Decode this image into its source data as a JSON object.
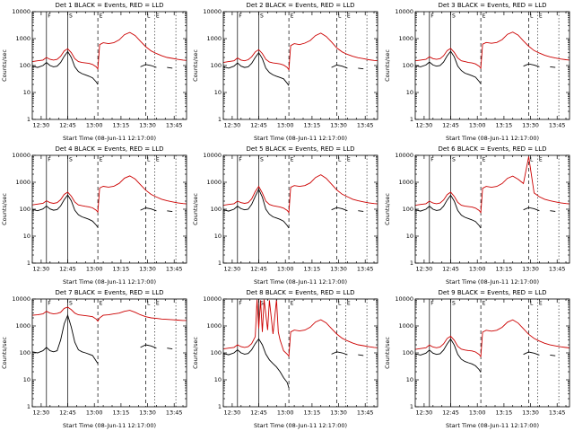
{
  "window": {
    "background": "#ffffff"
  },
  "colors": {
    "black": "#000000",
    "red": "#cc0000",
    "axis": "#000000",
    "flag": "#000000"
  },
  "legend": {
    "black_means": "Events",
    "red_means": "LLD"
  },
  "axes": {
    "xmin": 25,
    "xmax": 112,
    "ymin": 1,
    "ymax": 10000,
    "x_ticks": [
      30,
      45,
      60,
      75,
      90,
      105
    ],
    "x_tick_labels": [
      "12:30",
      "12:45",
      "13:00",
      "13:15",
      "13:30",
      "13:45"
    ],
    "x_minor_step": 5,
    "y_ticks": [
      1,
      10,
      100,
      1000,
      10000
    ],
    "y_tick_labels": [
      "1",
      "10",
      "100",
      "1000",
      "10000"
    ],
    "xlabel": "Start Time (08-Jun-11 12:17:00)",
    "ylabel": "Counts/sec",
    "y_scale": "log",
    "grid": false
  },
  "event_lines": {
    "solid": [
      33,
      45
    ],
    "dashed": [
      62,
      89
    ],
    "dotted": [
      94,
      106
    ]
  },
  "flags": [
    {
      "x": 33,
      "label": "F"
    },
    {
      "x": 45,
      "label": "S"
    },
    {
      "x": 62,
      "label": "E"
    },
    {
      "x": 89,
      "label": "L"
    },
    {
      "x": 94,
      "label": "E"
    }
  ],
  "sample_x": [
    25,
    28,
    31,
    33,
    35,
    37,
    39,
    41,
    43,
    45,
    47,
    49,
    51,
    53,
    55,
    57,
    59,
    61,
    62,
    63,
    65,
    68,
    71,
    74,
    77,
    80,
    83,
    86,
    89,
    92,
    95,
    98,
    101,
    104,
    107,
    110,
    112
  ],
  "chart_data": [
    {
      "det": 1,
      "type": "line",
      "title": "Det 1 BLACK = Events, RED = LLD",
      "ylim": [
        1,
        10000
      ],
      "series": [
        {
          "name": "LLD",
          "color": "red",
          "y": [
            140,
            150,
            160,
            200,
            170,
            160,
            170,
            220,
            350,
            420,
            300,
            180,
            140,
            130,
            125,
            120,
            110,
            90,
            75,
            600,
            700,
            650,
            700,
            900,
            1400,
            1700,
            1300,
            800,
            500,
            350,
            280,
            230,
            200,
            185,
            170,
            160,
            155
          ]
        },
        {
          "name": "Events",
          "color": "black",
          "y": [
            95,
            85,
            100,
            130,
            100,
            90,
            95,
            130,
            220,
            330,
            200,
            90,
            60,
            50,
            45,
            40,
            35,
            25,
            20,
            null,
            null,
            null,
            null,
            null,
            null,
            null,
            null,
            90,
            110,
            100,
            85,
            null,
            85,
            80,
            null,
            null,
            null
          ]
        }
      ]
    },
    {
      "det": 2,
      "type": "line",
      "title": "Det 2 BLACK = Events, RED = LLD",
      "ylim": [
        1,
        10000
      ],
      "series": [
        {
          "name": "LLD",
          "color": "red",
          "y": [
            130,
            140,
            150,
            190,
            160,
            150,
            165,
            210,
            320,
            390,
            280,
            170,
            135,
            125,
            120,
            115,
            105,
            85,
            70,
            550,
            650,
            600,
            680,
            850,
            1300,
            1600,
            1200,
            750,
            450,
            320,
            260,
            220,
            195,
            180,
            165,
            155,
            150
          ]
        },
        {
          "name": "Events",
          "color": "black",
          "y": [
            90,
            80,
            95,
            125,
            95,
            85,
            90,
            120,
            200,
            300,
            180,
            80,
            55,
            45,
            40,
            36,
            32,
            22,
            18,
            null,
            null,
            null,
            null,
            null,
            null,
            null,
            null,
            85,
            105,
            95,
            80,
            null,
            80,
            75,
            null,
            null,
            null
          ]
        }
      ]
    },
    {
      "det": 3,
      "type": "line",
      "title": "Det 3 BLACK = Events, RED = LLD",
      "ylim": [
        1,
        10000
      ],
      "series": [
        {
          "name": "LLD",
          "color": "red",
          "y": [
            150,
            160,
            170,
            210,
            180,
            170,
            180,
            230,
            360,
            430,
            310,
            190,
            150,
            140,
            130,
            125,
            115,
            95,
            80,
            620,
            720,
            670,
            720,
            920,
            1450,
            1750,
            1350,
            820,
            520,
            360,
            290,
            240,
            210,
            190,
            175,
            165,
            160
          ]
        },
        {
          "name": "Events",
          "color": "black",
          "y": [
            100,
            90,
            105,
            135,
            105,
            95,
            100,
            135,
            230,
            340,
            210,
            95,
            65,
            52,
            47,
            42,
            37,
            26,
            21,
            null,
            null,
            null,
            null,
            null,
            null,
            null,
            null,
            95,
            115,
            105,
            90,
            null,
            90,
            85,
            null,
            null,
            null
          ]
        }
      ]
    },
    {
      "det": 4,
      "type": "line",
      "title": "Det 4 BLACK = Events, RED = LLD",
      "ylim": [
        1,
        10000
      ],
      "series": [
        {
          "name": "LLD",
          "color": "red",
          "y": [
            145,
            155,
            165,
            205,
            175,
            165,
            175,
            225,
            355,
            430,
            305,
            185,
            145,
            135,
            128,
            122,
            112,
            92,
            78,
            610,
            710,
            660,
            710,
            910,
            1420,
            1720,
            1320,
            810,
            510,
            355,
            285,
            235,
            205,
            188,
            172,
            162,
            157
          ]
        },
        {
          "name": "Events",
          "color": "black",
          "y": [
            98,
            88,
            102,
            132,
            102,
            92,
            97,
            132,
            225,
            335,
            205,
            92,
            62,
            52,
            47,
            42,
            36,
            26,
            21,
            null,
            null,
            null,
            null,
            null,
            null,
            null,
            null,
            92,
            112,
            102,
            87,
            null,
            87,
            82,
            null,
            null,
            null
          ]
        }
      ]
    },
    {
      "det": 5,
      "type": "line",
      "title": "Det 5 BLACK = Events, RED = LLD",
      "ylim": [
        1,
        10000
      ],
      "series": [
        {
          "name": "LLD",
          "color": "red",
          "y": [
            140,
            150,
            160,
            200,
            175,
            165,
            175,
            240,
            450,
            700,
            400,
            200,
            150,
            135,
            128,
            120,
            110,
            90,
            75,
            650,
            750,
            700,
            750,
            950,
            1500,
            1900,
            1400,
            850,
            520,
            360,
            290,
            235,
            205,
            188,
            172,
            162,
            157
          ]
        },
        {
          "name": "Events",
          "color": "black",
          "y": [
            95,
            85,
            100,
            130,
            105,
            95,
            100,
            150,
            300,
            550,
            280,
            100,
            65,
            52,
            47,
            42,
            36,
            25,
            20,
            null,
            null,
            null,
            null,
            null,
            null,
            null,
            null,
            95,
            115,
            105,
            88,
            null,
            88,
            83,
            null,
            null,
            null
          ]
        }
      ]
    },
    {
      "det": 6,
      "type": "line",
      "title": "Det 6 BLACK = Events, RED = LLD",
      "ylim": [
        1,
        10000
      ],
      "series": [
        {
          "name": "LLD",
          "color": "red",
          "y": [
            140,
            150,
            160,
            200,
            170,
            160,
            170,
            220,
            350,
            430,
            300,
            180,
            140,
            130,
            125,
            120,
            110,
            90,
            75,
            600,
            700,
            650,
            700,
            900,
            1400,
            1700,
            1300,
            900,
            9000,
            400,
            290,
            235,
            205,
            188,
            172,
            162,
            157
          ]
        },
        {
          "name": "Events",
          "color": "black",
          "y": [
            95,
            85,
            100,
            130,
            100,
            90,
            95,
            130,
            220,
            330,
            200,
            90,
            60,
            50,
            45,
            40,
            35,
            25,
            20,
            null,
            null,
            null,
            null,
            null,
            null,
            null,
            null,
            95,
            115,
            105,
            88,
            null,
            88,
            83,
            null,
            null,
            null
          ]
        }
      ]
    },
    {
      "det": 7,
      "type": "line",
      "title": "Det 7 BLACK = Events, RED = LLD",
      "ylim": [
        1,
        10000
      ],
      "series": [
        {
          "name": "LLD",
          "color": "red",
          "y": [
            2500,
            2600,
            2800,
            3500,
            3000,
            2800,
            2900,
            3200,
            4500,
            5000,
            4000,
            3000,
            2600,
            2500,
            2400,
            2300,
            2200,
            1800,
            1500,
            2000,
            2500,
            2600,
            2800,
            3000,
            3500,
            3800,
            3200,
            2600,
            2200,
            2000,
            1900,
            1800,
            1750,
            1700,
            1650,
            1600,
            1600
          ]
        },
        {
          "name": "Events",
          "color": "black",
          "y": [
            110,
            100,
            120,
            160,
            120,
            110,
            120,
            300,
            1200,
            2500,
            900,
            250,
            130,
            110,
            100,
            90,
            80,
            50,
            40,
            null,
            null,
            null,
            null,
            null,
            null,
            null,
            null,
            160,
            200,
            180,
            150,
            null,
            150,
            140,
            null,
            null,
            null
          ]
        }
      ]
    },
    {
      "det": 8,
      "type": "line",
      "title": "Det 8 BLACK = Events, RED = LLD",
      "ylim": [
        1,
        10000
      ],
      "series": [
        {
          "name": "LLD",
          "color": "red",
          "x": [
            25,
            28,
            31,
            33,
            35,
            37,
            39,
            41,
            43,
            44,
            45,
            46,
            47,
            48,
            50,
            51,
            53,
            55,
            56,
            57,
            59,
            61,
            62,
            63,
            65,
            68,
            71,
            74,
            77,
            80,
            83,
            86,
            89,
            92,
            95,
            98,
            101,
            104,
            107,
            110,
            112
          ],
          "y": [
            140,
            150,
            160,
            200,
            170,
            160,
            170,
            220,
            400,
            9500,
            800,
            9000,
            600,
            9500,
            700,
            9000,
            500,
            9500,
            600,
            300,
            120,
            90,
            75,
            600,
            700,
            650,
            700,
            900,
            1400,
            1700,
            1300,
            800,
            500,
            350,
            280,
            230,
            200,
            185,
            170,
            160,
            155
          ]
        },
        {
          "name": "Events",
          "color": "black",
          "y": [
            95,
            85,
            100,
            130,
            100,
            90,
            95,
            130,
            220,
            330,
            200,
            90,
            55,
            40,
            30,
            20,
            12,
            8,
            5,
            null,
            null,
            null,
            null,
            null,
            null,
            null,
            null,
            90,
            110,
            100,
            85,
            null,
            85,
            80,
            null,
            null,
            null
          ]
        }
      ]
    },
    {
      "det": 9,
      "type": "line",
      "title": "Det 9 BLACK = Events, RED = LLD",
      "ylim": [
        1,
        10000
      ],
      "series": [
        {
          "name": "LLD",
          "color": "red",
          "y": [
            135,
            145,
            155,
            195,
            165,
            155,
            165,
            215,
            345,
            415,
            295,
            175,
            138,
            128,
            122,
            118,
            108,
            88,
            73,
            590,
            690,
            640,
            690,
            890,
            1380,
            1680,
            1280,
            790,
            490,
            345,
            275,
            228,
            198,
            182,
            168,
            158,
            152
          ]
        },
        {
          "name": "Events",
          "color": "black",
          "y": [
            92,
            83,
            98,
            128,
            98,
            88,
            93,
            128,
            215,
            325,
            195,
            88,
            58,
            48,
            43,
            39,
            33,
            24,
            19,
            null,
            null,
            null,
            null,
            null,
            null,
            null,
            null,
            88,
            108,
            98,
            83,
            null,
            83,
            78,
            null,
            null,
            null
          ]
        }
      ]
    }
  ]
}
